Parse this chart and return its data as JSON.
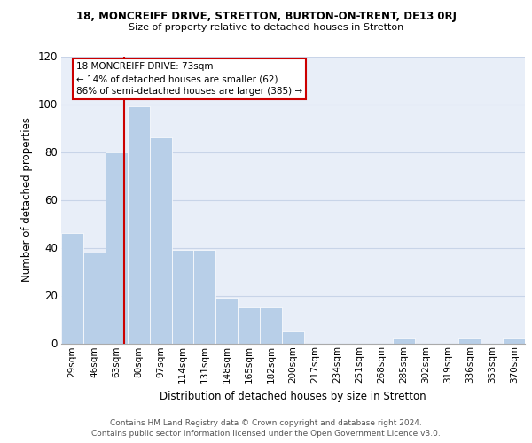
{
  "title_line1": "18, MONCREIFF DRIVE, STRETTON, BURTON-ON-TRENT, DE13 0RJ",
  "title_line2": "Size of property relative to detached houses in Stretton",
  "xlabel": "Distribution of detached houses by size in Stretton",
  "ylabel": "Number of detached properties",
  "categories": [
    "29sqm",
    "46sqm",
    "63sqm",
    "80sqm",
    "97sqm",
    "114sqm",
    "131sqm",
    "148sqm",
    "165sqm",
    "182sqm",
    "200sqm",
    "217sqm",
    "234sqm",
    "251sqm",
    "268sqm",
    "285sqm",
    "302sqm",
    "319sqm",
    "336sqm",
    "353sqm",
    "370sqm"
  ],
  "values": [
    46,
    38,
    80,
    99,
    86,
    39,
    39,
    19,
    15,
    15,
    5,
    0,
    0,
    0,
    0,
    2,
    0,
    0,
    2,
    0,
    2
  ],
  "bar_color": "#b8cfe8",
  "property_line_x": 2.35,
  "annotation_text_line1": "18 MONCREIFF DRIVE: 73sqm",
  "annotation_text_line2": "← 14% of detached houses are smaller (62)",
  "annotation_text_line3": "86% of semi-detached houses are larger (385) →",
  "annotation_box_color": "#cc0000",
  "ylim": [
    0,
    120
  ],
  "yticks": [
    0,
    20,
    40,
    60,
    80,
    100,
    120
  ],
  "grid_color": "#c8d4e8",
  "bg_color": "#e8eef8",
  "footer_line1": "Contains HM Land Registry data © Crown copyright and database right 2024.",
  "footer_line2": "Contains public sector information licensed under the Open Government Licence v3.0."
}
